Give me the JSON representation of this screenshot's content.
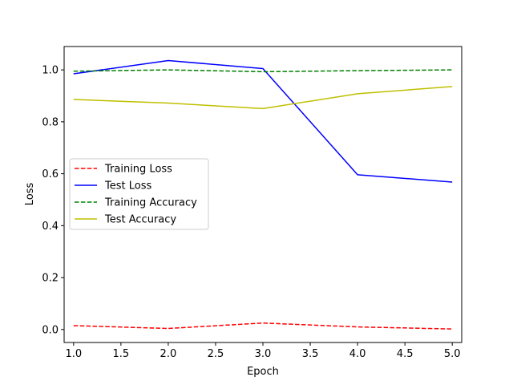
{
  "chart_data": {
    "type": "line",
    "title": "",
    "xlabel": "Epoch",
    "ylabel": "Loss",
    "xlim": [
      0.9,
      5.1
    ],
    "ylim": [
      -0.05,
      1.09
    ],
    "xticks": [
      1.0,
      1.5,
      2.0,
      2.5,
      3.0,
      3.5,
      4.0,
      4.5,
      5.0
    ],
    "xtick_labels": [
      "1.0",
      "1.5",
      "2.0",
      "2.5",
      "3.0",
      "3.5",
      "4.0",
      "4.5",
      "5.0"
    ],
    "yticks": [
      0.0,
      0.2,
      0.4,
      0.6,
      0.8,
      1.0
    ],
    "ytick_labels": [
      "0.0",
      "0.2",
      "0.4",
      "0.6",
      "0.8",
      "1.0"
    ],
    "grid": false,
    "legend_placement": "center-left",
    "x": [
      1,
      2,
      3,
      4,
      5
    ],
    "series": [
      {
        "name": "Training Loss",
        "values": [
          0.015,
          0.004,
          0.025,
          0.01,
          0.002
        ],
        "color": "#ff0000",
        "style": "dashed"
      },
      {
        "name": "Test Loss",
        "values": [
          0.985,
          1.036,
          1.005,
          0.596,
          0.568
        ],
        "color": "#0000ff",
        "style": "solid"
      },
      {
        "name": "Training Accuracy",
        "values": [
          0.995,
          1.0,
          0.993,
          0.997,
          1.0
        ],
        "color": "#008000",
        "style": "dashed"
      },
      {
        "name": "Test Accuracy",
        "values": [
          0.886,
          0.872,
          0.851,
          0.908,
          0.936
        ],
        "color": "#bfbf00",
        "style": "solid"
      }
    ]
  }
}
